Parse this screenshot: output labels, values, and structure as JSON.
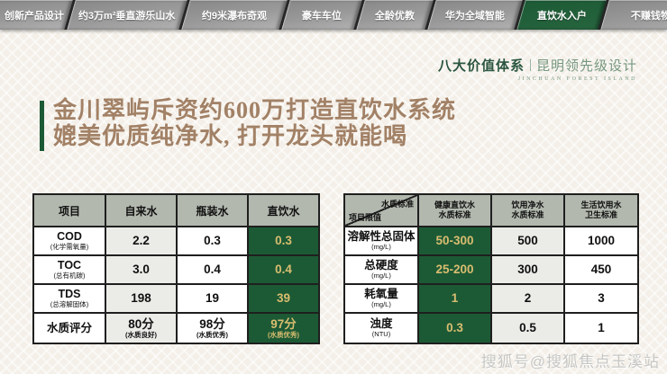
{
  "colors": {
    "green": "#1c5a35",
    "gold": "#d9bd70",
    "sage": "#b2b8ae",
    "tan": "#a28166",
    "grayCell": "#ebebe8",
    "border": "#1f1f1f",
    "brandDark": "#2b5640",
    "brandLight": "#76977f",
    "wmark": "#c7c7c5"
  },
  "nav": {
    "tabs": [
      {
        "label": "创新产品设计",
        "active": false
      },
      {
        "label": "约3万m²垂直游乐山水",
        "active": false
      },
      {
        "label": "约9米瀑布奇观",
        "active": false
      },
      {
        "label": "豪车车位",
        "active": false
      },
      {
        "label": "全龄优教",
        "active": false
      },
      {
        "label": "华为全域智能",
        "active": false
      },
      {
        "label": "直饮水入户",
        "active": true
      },
      {
        "label": "不赚钱物业",
        "active": false
      }
    ]
  },
  "brand": {
    "title_left": "八大价值体系",
    "title_right": "昆明领先级设计",
    "subtitle": "JINCHUAN FOREST ISLAND"
  },
  "headline": {
    "line1": "金川翠屿斥资约600万打造直饮水系统",
    "line2": "媲美优质纯净水, 打开龙头就能喝"
  },
  "left_table": {
    "headers": [
      "项目",
      "自来水",
      "瓶装水",
      "直饮水"
    ],
    "rows": [
      {
        "label": "COD",
        "sublabel": "(化学需氧量)",
        "cells": [
          "2.2",
          "0.3",
          "0.3"
        ]
      },
      {
        "label": "TOC",
        "sublabel": "(总有机碳)",
        "cells": [
          "3.0",
          "0.4",
          "0.4"
        ]
      },
      {
        "label": "TDS",
        "sublabel": "(总溶解固体)",
        "cells": [
          "198",
          "19",
          "39"
        ]
      },
      {
        "label": "水质评分",
        "sublabel": "",
        "cells": [
          "80分",
          "98分",
          "97分"
        ],
        "subs": [
          "(水质良好)",
          "(水质优秀)",
          "(水质优秀)"
        ]
      }
    ]
  },
  "right_table": {
    "corner_top": "水质标准",
    "corner_bottom": "项目限值",
    "col_headers": [
      {
        "l1": "健康直饮水",
        "l2": "水质标准"
      },
      {
        "l1": "饮用净水",
        "l2": "水质标准"
      },
      {
        "l1": "生活饮用水",
        "l2": "卫生标准"
      }
    ],
    "rows": [
      {
        "label": "溶解性总固体",
        "sublabel": "(mg/L)",
        "cells": [
          "50-300",
          "500",
          "1000"
        ]
      },
      {
        "label": "总硬度",
        "sublabel": "(mg/L)",
        "cells": [
          "25-200",
          "300",
          "450"
        ]
      },
      {
        "label": "耗氧量",
        "sublabel": "(mg/L)",
        "cells": [
          "1",
          "2",
          "3"
        ]
      },
      {
        "label": "浊度",
        "sublabel": "(NTU)",
        "cells": [
          "0.3",
          "0.5",
          "1"
        ]
      }
    ]
  },
  "watermark": {
    "text": "搜狐号@搜狐焦点玉溪站"
  }
}
